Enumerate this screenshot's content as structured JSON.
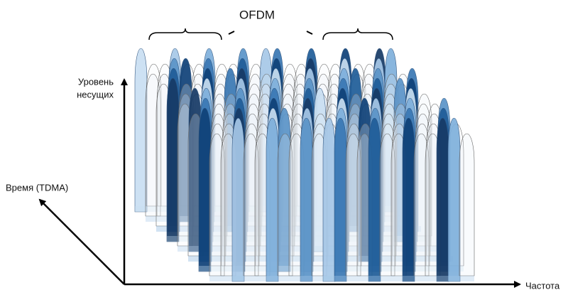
{
  "title": "OFDM",
  "y_axis_label": [
    "Уровень",
    "несущих"
  ],
  "z_axis_label": "Время (TDMA)",
  "x_axis_label": "Частота"
}
